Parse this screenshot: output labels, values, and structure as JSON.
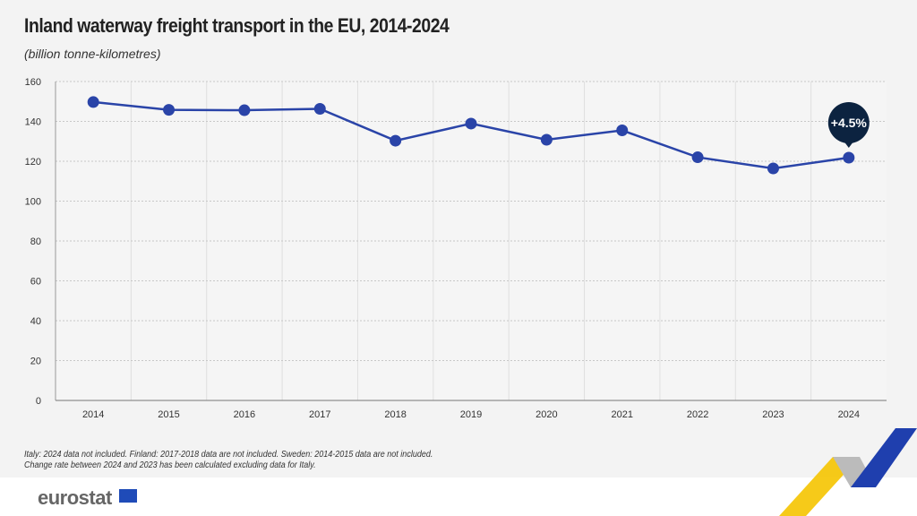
{
  "title": "Inland waterway freight transport in the EU, 2014-2024",
  "subtitle": "(billion tonne-kilometres)",
  "notes": [
    "Italy: 2024 data not included. Finland: 2017-2018 data are not included. Sweden: 2014-2015 data are not included.",
    "Change rate between 2024 and 2023 has been calculated excluding data for Italy."
  ],
  "logo": "eurostat",
  "colors": {
    "line": "#2a44a8",
    "callout": "#0c2340",
    "grid": "#c8c8c8"
  },
  "chart_data": {
    "type": "line",
    "title": "Inland waterway freight transport in the EU, 2014-2024",
    "ylabel": "(billion tonne-kilometres)",
    "categories": [
      "2014",
      "2015",
      "2016",
      "2017",
      "2018",
      "2019",
      "2020",
      "2021",
      "2022",
      "2023",
      "2024"
    ],
    "values": [
      149.7,
      145.8,
      145.6,
      146.3,
      130.3,
      138.9,
      130.8,
      135.5,
      122.0,
      116.4,
      121.8
    ],
    "ylim": [
      0,
      160
    ],
    "yticks": [
      0,
      20,
      40,
      60,
      80,
      100,
      120,
      140,
      160
    ],
    "grid": true,
    "annotation": {
      "category": "2024",
      "text": "+4.5%"
    }
  }
}
